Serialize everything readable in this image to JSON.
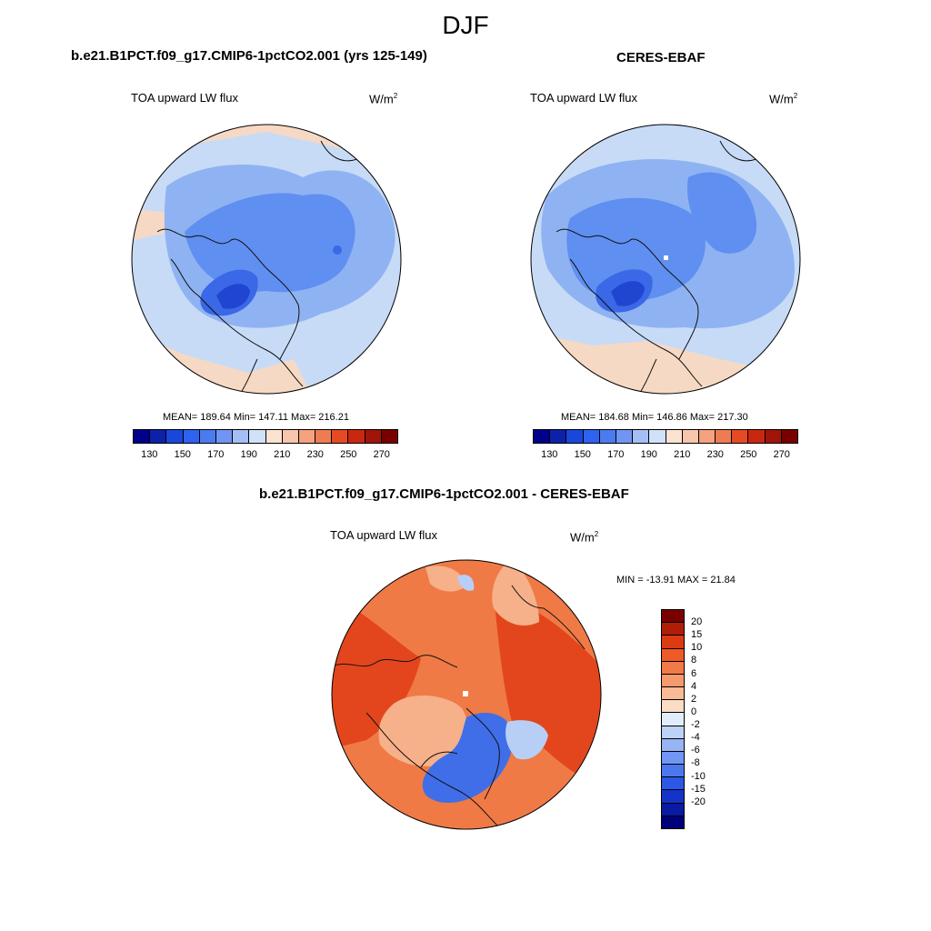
{
  "season": "DJF",
  "panels": {
    "model": {
      "title": "b.e21.B1PCT.f09_g17.CMIP6-1pctCO2.001 (yrs 125-149)",
      "variable": "TOA upward LW flux",
      "units_base": "W/m",
      "units_exp": "2",
      "stats": "MEAN= 189.64  Min= 147.11  Max= 216.21"
    },
    "obs": {
      "title": "CERES-EBAF",
      "variable": "TOA upward LW flux",
      "units_base": "W/m",
      "units_exp": "2",
      "stats": "MEAN= 184.68  Min= 146.86  Max= 217.30"
    },
    "diff": {
      "title": "b.e21.B1PCT.f09_g17.CMIP6-1pctCO2.001 - CERES-EBAF",
      "variable": "TOA upward LW flux",
      "units_base": "W/m",
      "units_exp": "2",
      "minmax": "MIN = -13.91 MAX =  21.84"
    }
  },
  "colorbar_abs": {
    "colors": [
      "#00008a",
      "#0d21a8",
      "#1a46d9",
      "#2e62f0",
      "#4a7cf0",
      "#7095f5",
      "#a4bff5",
      "#d2e1fa",
      "#fbe3d2",
      "#f8c6ad",
      "#f4a27f",
      "#ee7c52",
      "#e64a22",
      "#c92810",
      "#a01508",
      "#7a0000"
    ],
    "labels": [
      "130",
      "150",
      "170",
      "190",
      "210",
      "230",
      "250",
      "270"
    ]
  },
  "colorbar_diff": {
    "colors": [
      "#7a0000",
      "#b01e08",
      "#dc3a12",
      "#ef5a26",
      "#f27a48",
      "#f59a6c",
      "#f8bb95",
      "#fbdcc4",
      "#e2edfb",
      "#bcd2f7",
      "#97b4f4",
      "#7296f3",
      "#4c78ef",
      "#2b58e6",
      "#1433c9",
      "#0a1aa3",
      "#00007a"
    ],
    "labels": [
      "20",
      "15",
      "10",
      "8",
      "6",
      "4",
      "2",
      "0",
      "-2",
      "-4",
      "-6",
      "-8",
      "-10",
      "-15",
      "-20"
    ]
  },
  "map_colors": {
    "light_blue": "#c7dbf7",
    "mid_blue": "#8fb3f2",
    "blue": "#5f8ff0",
    "deep_blue": "#3a68e6",
    "darkest_blue": "#1f45d1",
    "peach": "#f6d9c4",
    "diff_red": "#e3461c",
    "diff_orange": "#ef7a45",
    "diff_light_orange": "#f6b08a",
    "diff_blue": "#3f6ee8",
    "diff_light_blue": "#b8cff5"
  }
}
